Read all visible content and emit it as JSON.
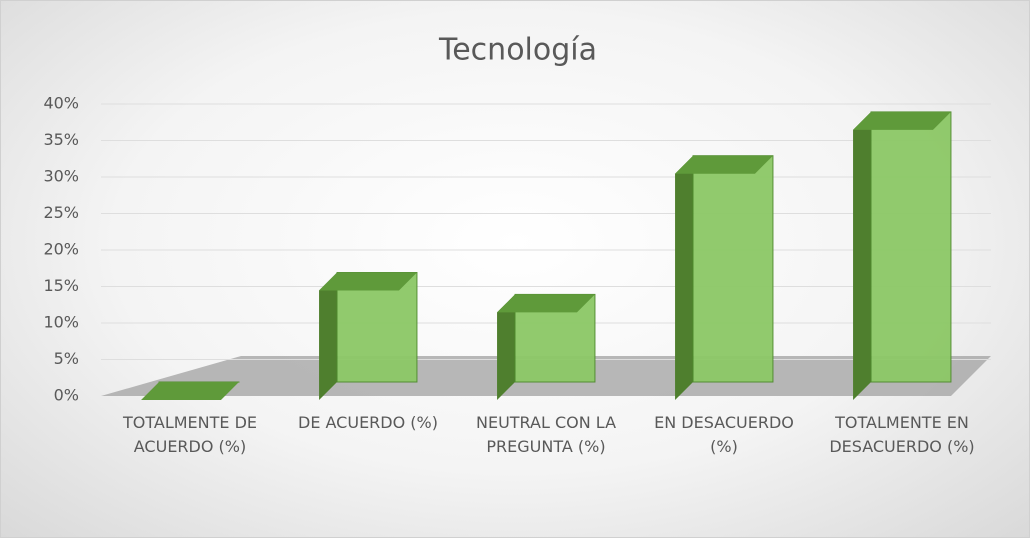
{
  "chart_data": {
    "type": "bar3d",
    "title": "Tecnología",
    "categories": [
      "TOTALMENTE DE ACUERDO (%)",
      "DE ACUERDO (%)",
      "NEUTRAL CON LA PREGUNTA (%)",
      "EN DESACUERDO (%)",
      "TOTALMENTE EN DESACUERDO (%)"
    ],
    "values": [
      0,
      15,
      12,
      31,
      37
    ],
    "color": "#8cc866",
    "ylim": [
      0,
      40
    ],
    "yticks": [
      {
        "value": 0,
        "label": "0%"
      },
      {
        "value": 5,
        "label": "5%"
      },
      {
        "value": 10,
        "label": "10%"
      },
      {
        "value": 15,
        "label": "15%"
      },
      {
        "value": 20,
        "label": "20%"
      },
      {
        "value": 25,
        "label": "25%"
      },
      {
        "value": 30,
        "label": "30%"
      },
      {
        "value": 35,
        "label": "35%"
      },
      {
        "value": 40,
        "label": "40%"
      }
    ],
    "grid": true
  }
}
